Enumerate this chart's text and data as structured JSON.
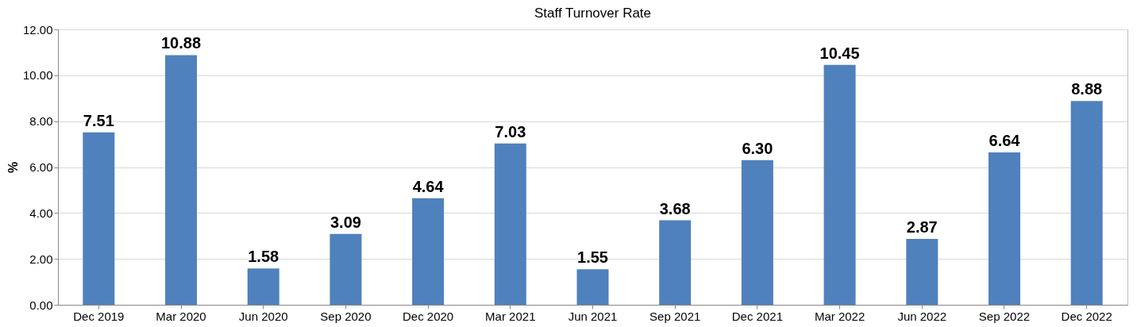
{
  "chart_data": {
    "type": "bar",
    "title": "Staff Turnover Rate",
    "ylabel": "%",
    "categories": [
      "Dec 2019",
      "Mar 2020",
      "Jun 2020",
      "Sep 2020",
      "Dec 2020",
      "Mar 2021",
      "Jun 2021",
      "Sep 2021",
      "Dec 2021",
      "Mar 2022",
      "Jun 2022",
      "Sep 2022",
      "Dec 2022"
    ],
    "values": [
      7.51,
      10.88,
      1.58,
      3.09,
      4.64,
      7.03,
      1.55,
      3.68,
      6.3,
      10.45,
      2.87,
      6.64,
      8.88
    ],
    "value_labels": [
      "7.51",
      "10.88",
      "1.58",
      "3.09",
      "4.64",
      "7.03",
      "1.55",
      "3.68",
      "6.30",
      "10.45",
      "2.87",
      "6.64",
      "8.88"
    ],
    "color": "#4f81bd",
    "ylim": [
      0,
      12
    ],
    "yticks": [
      {
        "value": 0,
        "label": "0.00"
      },
      {
        "value": 2,
        "label": "2.00"
      },
      {
        "value": 4,
        "label": "4.00"
      },
      {
        "value": 6,
        "label": "6.00"
      },
      {
        "value": 8,
        "label": "8.00"
      },
      {
        "value": 10,
        "label": "10.00"
      },
      {
        "value": 12,
        "label": "12.00"
      }
    ],
    "grid": "y"
  }
}
